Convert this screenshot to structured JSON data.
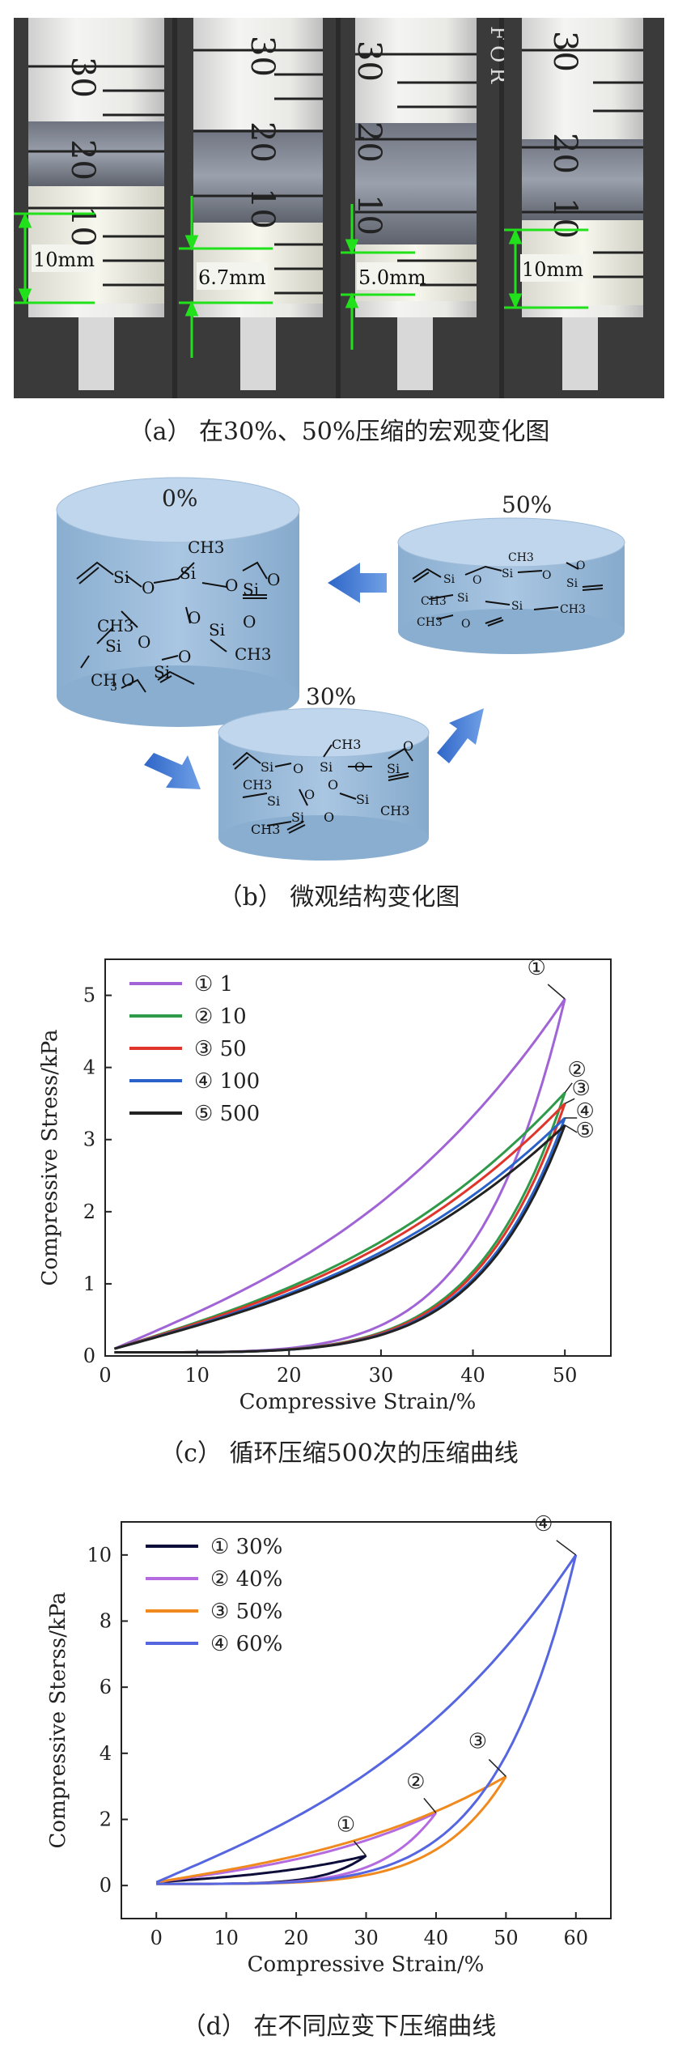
{
  "panels": {
    "a": {
      "caption": "（a）  在30%、50%压缩的宏观变化图",
      "syringes": [
        {
          "scale": [
            "30",
            "20",
            "10"
          ],
          "measure": "10mm"
        },
        {
          "scale": [
            "30",
            "20",
            "10"
          ],
          "measure": "6.7mm"
        },
        {
          "scale": [
            "30",
            "20",
            "10"
          ],
          "measure": "5.0mm"
        },
        {
          "scale": [
            "30",
            "20",
            "10"
          ],
          "measure": "10mm"
        }
      ],
      "brand": "FOR"
    },
    "b": {
      "caption": "（b）  微观结构变化图",
      "labels": {
        "zero": "0%",
        "thirty": "30%",
        "fifty": "50%"
      },
      "atoms": {
        "si": "Si",
        "o": "O",
        "ch3": "CH3",
        "ch": "CH",
        "sub3": "3"
      }
    },
    "c": {
      "caption": "（c）  循环压缩500次的压缩曲线"
    },
    "d": {
      "caption": "（d）  在不同应变下压缩曲线"
    }
  },
  "chart_data": [
    {
      "type": "line",
      "xlabel": "Compressive Strain/%",
      "ylabel": "Compressive Stress/kPa",
      "xlim": [
        0,
        55
      ],
      "ylim": [
        0,
        5.5
      ],
      "xticks": [
        0,
        10,
        20,
        30,
        40,
        50
      ],
      "yticks": [
        0,
        1,
        2,
        3,
        4,
        5
      ],
      "legend_position": "top-left",
      "series": [
        {
          "name": "① 1",
          "color": "#a064d6",
          "peak": [
            50,
            4.95
          ],
          "marker": "①"
        },
        {
          "name": "② 10",
          "color": "#2f9a4a",
          "peak": [
            50,
            3.65
          ],
          "marker": "②"
        },
        {
          "name": "③ 50",
          "color": "#e0352b",
          "peak": [
            50,
            3.5
          ],
          "marker": "③"
        },
        {
          "name": "④ 100",
          "color": "#2a62c9",
          "peak": [
            50,
            3.3
          ],
          "marker": "④"
        },
        {
          "name": "⑤ 500",
          "color": "#222222",
          "peak": [
            50,
            3.2
          ],
          "marker": "⑤"
        }
      ]
    },
    {
      "type": "line",
      "xlabel": "Compressive Strain/%",
      "ylabel": "Compressive Sterss/kPa",
      "xlim": [
        -5,
        65
      ],
      "ylim": [
        -1,
        11
      ],
      "xticks": [
        0,
        10,
        20,
        30,
        40,
        50,
        60
      ],
      "yticks": [
        0,
        2,
        4,
        6,
        8,
        10
      ],
      "legend_position": "top-left",
      "series": [
        {
          "name": "① 30%",
          "color": "#0d0d3a",
          "peak": [
            30,
            0.9
          ],
          "marker": "①"
        },
        {
          "name": "② 40%",
          "color": "#b56be0",
          "peak": [
            40,
            2.2
          ],
          "marker": "②"
        },
        {
          "name": "③ 50%",
          "color": "#f08a1e",
          "peak": [
            50,
            3.3
          ],
          "marker": "③"
        },
        {
          "name": "④ 60%",
          "color": "#5566e0",
          "peak": [
            60,
            10.0
          ],
          "marker": "④"
        }
      ]
    }
  ]
}
